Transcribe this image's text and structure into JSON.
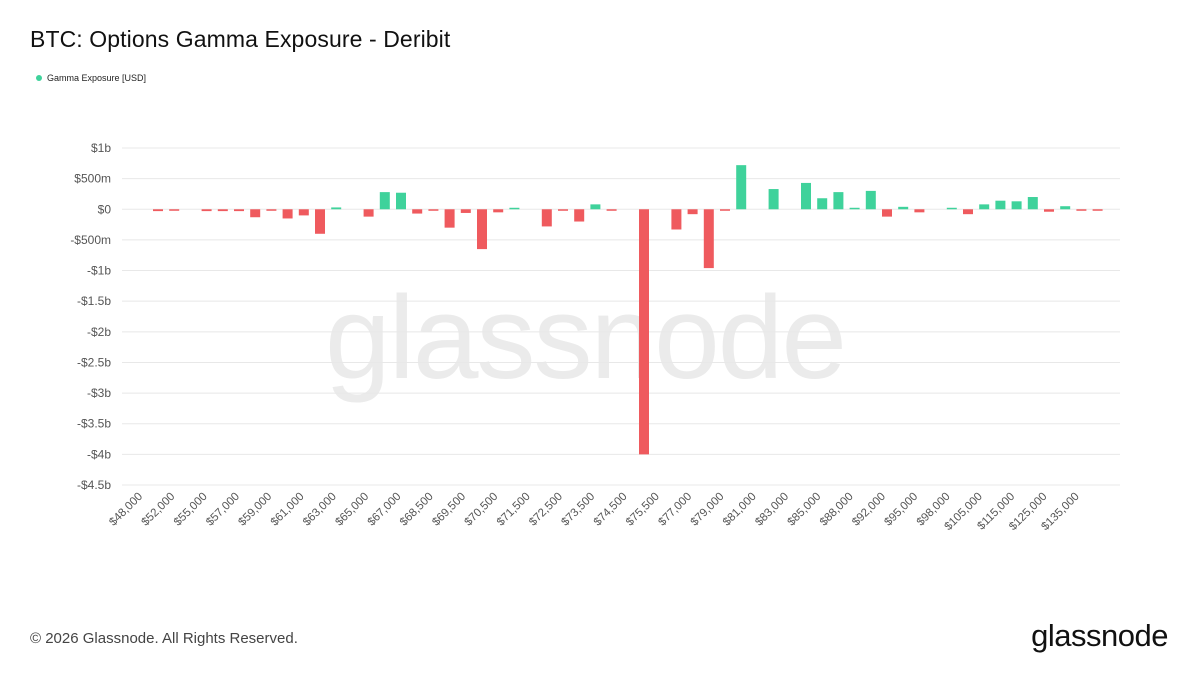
{
  "header": {
    "title": "BTC: Options Gamma Exposure - Deribit"
  },
  "legend": {
    "label": "Gamma Exposure [USD]"
  },
  "watermark": "glassnode",
  "footer": {
    "copyright": "© 2026 Glassnode. All Rights Reserved.",
    "logo": "glassnode"
  },
  "colors": {
    "positive": "#3fd29b",
    "negative": "#ef5a5e",
    "grid": "#e8e8e8",
    "axis_text": "#555555"
  },
  "chart_data": {
    "type": "bar",
    "title": "BTC: Options Gamma Exposure - Deribit",
    "xlabel": "",
    "ylabel": "",
    "ylim": [
      -4.5,
      1.0
    ],
    "y_unit": "billion USD",
    "y_ticks": [
      {
        "v": 1.0,
        "label": "$1b"
      },
      {
        "v": 0.5,
        "label": "$500m"
      },
      {
        "v": 0.0,
        "label": "$0"
      },
      {
        "v": -0.5,
        "label": "-$500m"
      },
      {
        "v": -1.0,
        "label": "-$1b"
      },
      {
        "v": -1.5,
        "label": "-$1.5b"
      },
      {
        "v": -2.0,
        "label": "-$2b"
      },
      {
        "v": -2.5,
        "label": "-$2.5b"
      },
      {
        "v": -3.0,
        "label": "-$3b"
      },
      {
        "v": -3.5,
        "label": "-$3.5b"
      },
      {
        "v": -4.0,
        "label": "-$4b"
      },
      {
        "v": -4.5,
        "label": "-$4.5b"
      }
    ],
    "x_tick_labels": [
      "$48,000",
      "$52,000",
      "$55,000",
      "$57,000",
      "$59,000",
      "$61,000",
      "$63,000",
      "$65,000",
      "$67,000",
      "$68,500",
      "$69,500",
      "$70,500",
      "$71,500",
      "$72,500",
      "$73,500",
      "$74,500",
      "$75,500",
      "$77,000",
      "$79,000",
      "$81,000",
      "$83,000",
      "$85,000",
      "$88,000",
      "$92,000",
      "$95,000",
      "$98,000",
      "$105,000",
      "$115,000",
      "$125,000",
      "$135,000"
    ],
    "series": [
      {
        "name": "Gamma Exposure [USD]",
        "values": [
          -0.03,
          -0.02,
          0,
          -0.03,
          -0.03,
          -0.03,
          -0.13,
          -0.02,
          -0.15,
          -0.1,
          -0.4,
          0.03,
          0,
          -0.12,
          0.28,
          0.27,
          -0.07,
          -0.02,
          -0.3,
          -0.06,
          -0.65,
          -0.05,
          0.01,
          0,
          -0.28,
          -0.02,
          -0.2,
          0.08,
          -0.02,
          0,
          -4.0,
          0,
          -0.33,
          -0.08,
          -0.96,
          -0.02,
          0.72,
          0,
          0.33,
          0,
          0.43,
          0.18,
          0.28,
          0.02,
          0.3,
          -0.12,
          0.04,
          -0.05,
          0,
          0.02,
          -0.08,
          0.08,
          0.14,
          0.13,
          0.2,
          -0.04,
          0.05,
          -0.02,
          -0.02
        ]
      }
    ]
  }
}
